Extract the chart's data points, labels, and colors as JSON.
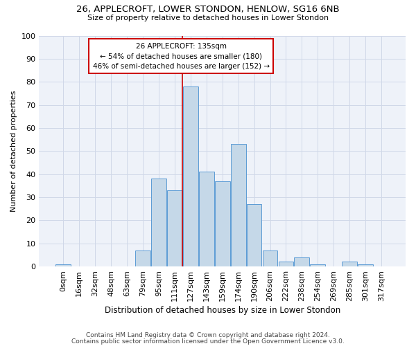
{
  "title": "26, APPLECROFT, LOWER STONDON, HENLOW, SG16 6NB",
  "subtitle": "Size of property relative to detached houses in Lower Stondon",
  "xlabel": "Distribution of detached houses by size in Lower Stondon",
  "ylabel": "Number of detached properties",
  "bar_labels": [
    "0sqm",
    "16sqm",
    "32sqm",
    "48sqm",
    "63sqm",
    "79sqm",
    "95sqm",
    "111sqm",
    "127sqm",
    "143sqm",
    "159sqm",
    "174sqm",
    "190sqm",
    "206sqm",
    "222sqm",
    "238sqm",
    "254sqm",
    "269sqm",
    "285sqm",
    "301sqm",
    "317sqm"
  ],
  "bar_values": [
    1,
    0,
    0,
    0,
    0,
    7,
    38,
    33,
    78,
    41,
    37,
    53,
    27,
    7,
    2,
    4,
    1,
    0,
    2,
    1,
    0
  ],
  "bar_color": "#c5d8e8",
  "bar_edge_color": "#5b9bd5",
  "grid_color": "#d0d8e8",
  "background_color": "#eef2f9",
  "vline_x_idx": 8,
  "vline_color": "#cc0000",
  "annotation_text": "26 APPLECROFT: 135sqm\n← 54% of detached houses are smaller (180)\n46% of semi-detached houses are larger (152) →",
  "annotation_box_facecolor": "#ffffff",
  "annotation_border_color": "#cc0000",
  "ylim": [
    0,
    100
  ],
  "yticks": [
    0,
    10,
    20,
    30,
    40,
    50,
    60,
    70,
    80,
    90,
    100
  ],
  "title_fontsize": 9.5,
  "subtitle_fontsize": 8,
  "footnote1": "Contains HM Land Registry data © Crown copyright and database right 2024.",
  "footnote2": "Contains public sector information licensed under the Open Government Licence v3.0.",
  "footnote_fontsize": 6.5
}
